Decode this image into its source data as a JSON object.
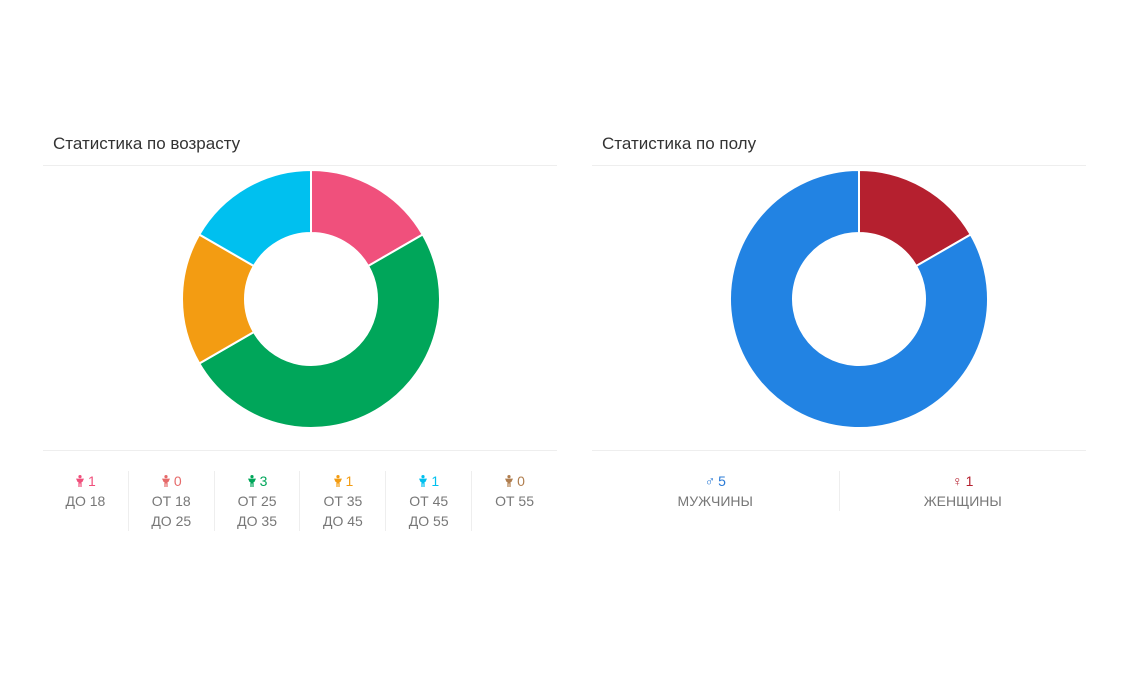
{
  "age_panel": {
    "title": "Статистика по возрасту",
    "legend": [
      {
        "count": "1",
        "line1": "ДО 18",
        "line2": "",
        "color": "#F0507C"
      },
      {
        "count": "0",
        "line1": "ОТ 18",
        "line2": "ДО 25",
        "color": "#E66A6A"
      },
      {
        "count": "3",
        "line1": "ОТ 25",
        "line2": "ДО 35",
        "color": "#00A65A"
      },
      {
        "count": "1",
        "line1": "ОТ 35",
        "line2": "ДО 45",
        "color": "#F39C12"
      },
      {
        "count": "1",
        "line1": "ОТ 45",
        "line2": "ДО 55",
        "color": "#00C0EF"
      },
      {
        "count": "0",
        "line1": "ОТ 55",
        "line2": "",
        "color": "#B07E4F"
      }
    ]
  },
  "gender_panel": {
    "title": "Статистика по полу",
    "legend": [
      {
        "symbol": "♂",
        "count": "5",
        "label": "МУЖЧИНЫ",
        "color": "#2B7BD6"
      },
      {
        "symbol": "♀",
        "count": "1",
        "label": "ЖЕНЩИНЫ",
        "color": "#B5202F"
      }
    ]
  },
  "chart_data": [
    {
      "type": "pie",
      "title": "Статистика по возрасту",
      "categories": [
        "ДО 18",
        "ОТ 18 ДО 25",
        "ОТ 25 ДО 35",
        "ОТ 35 ДО 45",
        "ОТ 45 ДО 55",
        "ОТ 55"
      ],
      "values": [
        1,
        0,
        3,
        1,
        1,
        0
      ],
      "colors": [
        "#F0507C",
        "#E66A6A",
        "#00A65A",
        "#F39C12",
        "#00C0EF",
        "#B07E4F"
      ],
      "donut": true
    },
    {
      "type": "pie",
      "title": "Статистика по полу",
      "categories": [
        "ЖЕНЩИНЫ",
        "МУЖЧИНЫ"
      ],
      "values": [
        1,
        5
      ],
      "colors": [
        "#B5202F",
        "#2283E3"
      ],
      "donut": true
    }
  ]
}
